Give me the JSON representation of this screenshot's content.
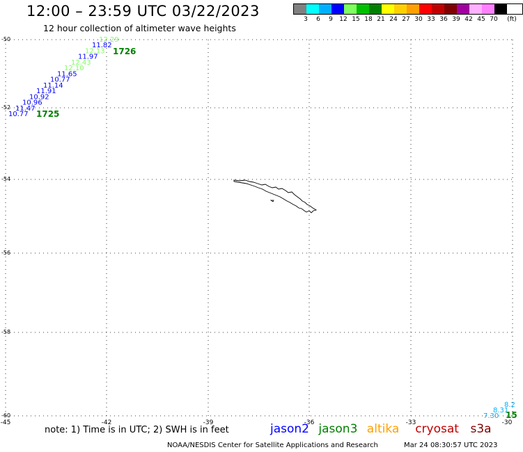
{
  "title": "12:00 – 23:59 UTC 03/22/2023",
  "subtitle": "12 hour collection of altimeter wave heights",
  "colorscale": {
    "colors": [
      "#808080",
      "#00ffff",
      "#00b0ff",
      "#0000ff",
      "#80ff60",
      "#00c000",
      "#008000",
      "#ffff00",
      "#ffd000",
      "#ffa000",
      "#ff0000",
      "#c00000",
      "#800000",
      "#a000a0",
      "#ffb0ff",
      "#ff80ff",
      "#000000"
    ],
    "labels": [
      "3",
      "6",
      "9",
      "12",
      "15",
      "18",
      "21",
      "24",
      "27",
      "30",
      "33",
      "36",
      "39",
      "42",
      "45",
      "70",
      "(ft)"
    ]
  },
  "lat_labels": [
    "-50",
    "-52",
    "-54",
    "-56",
    "-58",
    "-60"
  ],
  "lon_labels": [
    "-45",
    "-42",
    "-39",
    "-36",
    "-33",
    "-30"
  ],
  "track1": {
    "start_label": "1725",
    "end_label": "1726",
    "points": [
      {
        "v": "10.77",
        "c": "#0000ff"
      },
      {
        "v": "11.47",
        "c": "#0000ff"
      },
      {
        "v": "10.96",
        "c": "#0000ff"
      },
      {
        "v": "10.92",
        "c": "#0000ff"
      },
      {
        "v": "11.91",
        "c": "#0000ff"
      },
      {
        "v": "11.14",
        "c": "#0000ff"
      },
      {
        "v": "10.77",
        "c": "#0000ff"
      },
      {
        "v": "11.65",
        "c": "#0000ff"
      },
      {
        "v": "12.10",
        "c": "#80ff60"
      },
      {
        "v": "12.43",
        "c": "#80ff60"
      },
      {
        "v": "11.97",
        "c": "#0000ff"
      },
      {
        "v": "12.13",
        "c": "#80ff60"
      },
      {
        "v": "11.82",
        "c": "#0000ff"
      },
      {
        "v": "12.29",
        "c": "#80ff60"
      }
    ]
  },
  "track2": {
    "end_label": "15",
    "points": [
      {
        "v": "7.30",
        "c": "#00b0ff"
      },
      {
        "v": "8.31",
        "c": "#00b0ff"
      },
      {
        "v": "8.2",
        "c": "#00b0ff"
      }
    ]
  },
  "note": "note: 1) Time is in UTC; 2) SWH is in feet",
  "legend": [
    {
      "name": "jason2",
      "color": "#0000ff"
    },
    {
      "name": "jason3",
      "color": "#008000"
    },
    {
      "name": "altika",
      "color": "#ffa000"
    },
    {
      "name": "cryosat",
      "color": "#c00000"
    },
    {
      "name": "s3a",
      "color": "#800000"
    }
  ],
  "credit": "NOAA/NESDIS Center for Satellite Applications and Research",
  "timestamp": "Mar 24 08:30:57 UTC 2023"
}
